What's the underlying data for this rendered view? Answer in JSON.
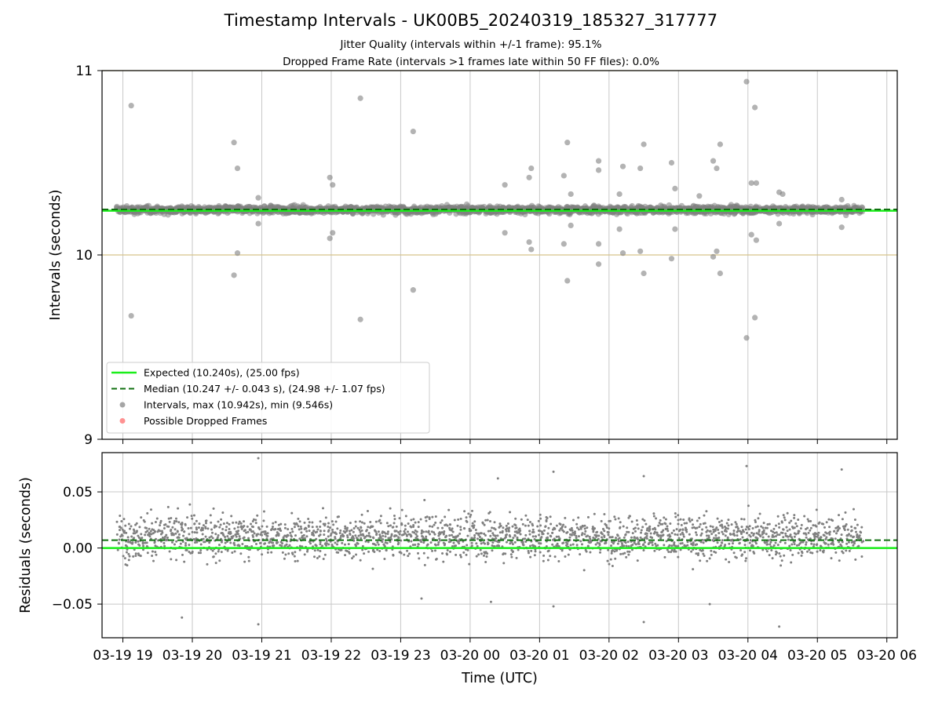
{
  "title": "Timestamp Intervals - UK00B5_20240319_185327_317777",
  "subtitle_line1": "Jitter Quality (intervals within +/-1 frame): 95.1%",
  "subtitle_line2": "Dropped Frame Rate (intervals >1 frames late within 50 FF files): 0.0%",
  "colors": {
    "expected": "#1aee1a",
    "median": "#107010",
    "points": "#808080",
    "dropped": "#ff6464",
    "bounds": "#d6c48a",
    "grid": "#c8c8c8"
  },
  "chart_data": [
    {
      "type": "scatter",
      "name": "intervals-panel",
      "xlabel": "",
      "ylabel": "Intervals (seconds)",
      "xlim_hours": [
        18.7,
        30.15
      ],
      "ylim": [
        9,
        11
      ],
      "yticks": [
        9,
        10,
        11
      ],
      "ytick_labels": [
        "9",
        "10",
        "11"
      ],
      "grid": "x-only",
      "bound_lines": [
        10,
        11
      ],
      "expected_value": 10.24,
      "median_value": 10.247,
      "legend": {
        "placement": "lower-left",
        "entries": [
          {
            "label": "Expected (10.240s), (25.00 fps)",
            "style": "solid-line",
            "color_key": "expected"
          },
          {
            "label": "Median (10.247 +/- 0.043 s), (24.98 +/- 1.07 fps)",
            "style": "dashed-line",
            "color_key": "median"
          },
          {
            "label": "Intervals, max (10.942s), min (9.546s)",
            "style": "marker",
            "color_key": "points"
          },
          {
            "label": "Possible Dropped Frames",
            "style": "marker",
            "color_key": "dropped"
          }
        ]
      },
      "band": {
        "center": 10.245,
        "spread": 0.03,
        "x_start_hours": 18.92,
        "x_end_hours": 29.65
      },
      "outliers": [
        [
          19.12,
          10.81
        ],
        [
          19.12,
          9.67
        ],
        [
          20.6,
          10.61
        ],
        [
          20.65,
          10.47
        ],
        [
          20.6,
          9.89
        ],
        [
          20.65,
          10.01
        ],
        [
          20.95,
          10.31
        ],
        [
          20.95,
          10.17
        ],
        [
          21.98,
          10.42
        ],
        [
          22.02,
          10.38
        ],
        [
          21.98,
          10.09
        ],
        [
          22.02,
          10.12
        ],
        [
          22.42,
          10.85
        ],
        [
          22.42,
          9.65
        ],
        [
          23.18,
          10.67
        ],
        [
          23.18,
          9.81
        ],
        [
          24.5,
          10.38
        ],
        [
          24.5,
          10.12
        ],
        [
          24.85,
          10.42
        ],
        [
          24.88,
          10.47
        ],
        [
          24.85,
          10.07
        ],
        [
          24.88,
          10.03
        ],
        [
          25.35,
          10.43
        ],
        [
          25.4,
          10.61
        ],
        [
          25.45,
          10.33
        ],
        [
          25.35,
          10.06
        ],
        [
          25.4,
          9.86
        ],
        [
          25.45,
          10.16
        ],
        [
          25.85,
          10.51
        ],
        [
          25.85,
          10.46
        ],
        [
          25.85,
          10.06
        ],
        [
          25.85,
          9.95
        ],
        [
          26.15,
          10.33
        ],
        [
          26.2,
          10.48
        ],
        [
          26.15,
          10.14
        ],
        [
          26.2,
          10.01
        ],
        [
          26.45,
          10.47
        ],
        [
          26.5,
          10.6
        ],
        [
          26.45,
          10.02
        ],
        [
          26.5,
          9.9
        ],
        [
          26.9,
          10.5
        ],
        [
          26.95,
          10.36
        ],
        [
          26.9,
          9.98
        ],
        [
          26.95,
          10.14
        ],
        [
          27.3,
          10.32
        ],
        [
          27.5,
          10.51
        ],
        [
          27.55,
          10.47
        ],
        [
          27.6,
          10.6
        ],
        [
          27.5,
          9.99
        ],
        [
          27.55,
          10.02
        ],
        [
          27.6,
          9.9
        ],
        [
          27.98,
          10.94
        ],
        [
          28.05,
          10.39
        ],
        [
          28.1,
          10.8
        ],
        [
          28.12,
          10.39
        ],
        [
          27.98,
          9.55
        ],
        [
          28.05,
          10.11
        ],
        [
          28.1,
          9.66
        ],
        [
          28.12,
          10.08
        ],
        [
          28.45,
          10.34
        ],
        [
          28.5,
          10.33
        ],
        [
          28.45,
          10.17
        ],
        [
          29.35,
          10.3
        ],
        [
          29.35,
          10.15
        ]
      ]
    },
    {
      "type": "scatter",
      "name": "residuals-panel",
      "xlabel": "Time (UTC)",
      "ylabel": "Residuals (seconds)",
      "xlim_hours": [
        18.7,
        30.15
      ],
      "ylim": [
        -0.08,
        0.085
      ],
      "yticks": [
        0.05,
        0.0,
        -0.05
      ],
      "ytick_labels": [
        "0.05",
        "0.00",
        "−0.05"
      ],
      "grid": "both",
      "expected_value": 0.0,
      "median_value": 0.007,
      "x_ticks_hours": [
        19,
        20,
        21,
        22,
        23,
        24,
        25,
        26,
        27,
        28,
        29,
        30
      ],
      "x_tick_labels": [
        "03-19 19",
        "03-19 20",
        "03-19 21",
        "03-19 22",
        "03-19 23",
        "03-20 00",
        "03-20 01",
        "03-20 02",
        "03-20 03",
        "03-20 04",
        "03-20 05",
        "03-20 06"
      ],
      "band": {
        "center": 0.01,
        "spread": 0.018,
        "x_start_hours": 18.92,
        "x_end_hours": 29.65
      },
      "outliers": [
        [
          20.95,
          0.08
        ],
        [
          20.95,
          -0.068
        ],
        [
          19.85,
          -0.062
        ],
        [
          25.2,
          0.068
        ],
        [
          27.45,
          -0.05
        ],
        [
          27.98,
          0.073
        ],
        [
          28.45,
          -0.07
        ],
        [
          26.5,
          0.064
        ],
        [
          24.3,
          -0.048
        ],
        [
          29.35,
          0.07
        ],
        [
          26.5,
          -0.066
        ],
        [
          25.2,
          -0.052
        ],
        [
          24.4,
          0.062
        ],
        [
          23.3,
          -0.045
        ]
      ]
    }
  ]
}
